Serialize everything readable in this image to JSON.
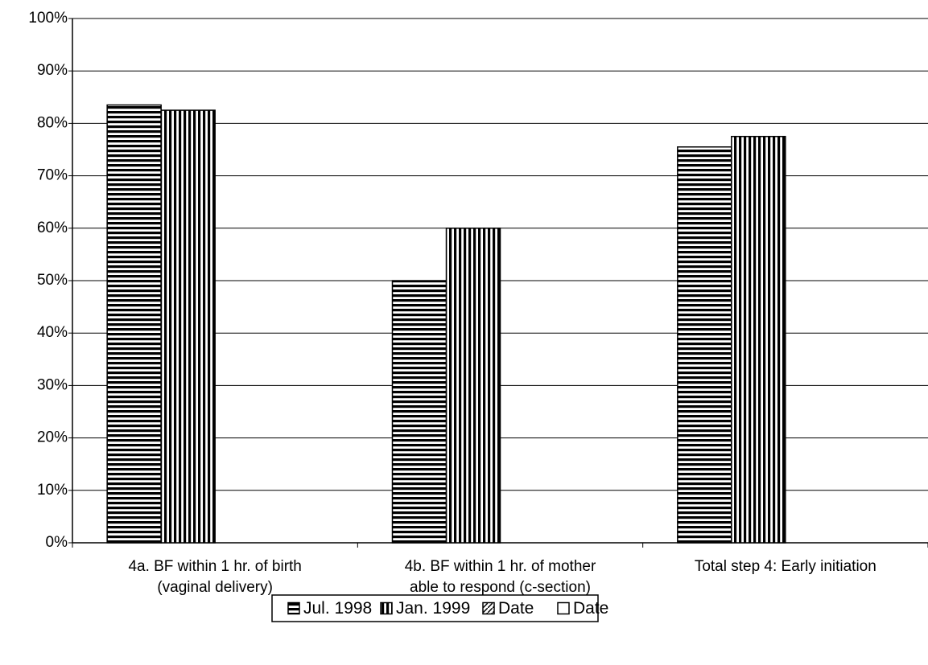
{
  "chart_data": {
    "type": "bar",
    "categories": [
      [
        "4a. BF within 1 hr. of birth",
        "(vaginal delivery)"
      ],
      [
        "4b. BF within 1 hr. of mother",
        "able to respond (c-section)"
      ],
      [
        "Total step 4: Early initiation"
      ]
    ],
    "series": [
      {
        "name": "Jul. 1998",
        "color": "#000000",
        "pattern": "horizontal",
        "values": [
          83.5,
          50,
          75.5
        ]
      },
      {
        "name": "Jan. 1999",
        "color": "#000000",
        "pattern": "vertical",
        "values": [
          82.5,
          60,
          77.5
        ]
      },
      {
        "name": "Date",
        "color": "#000000",
        "pattern": "diagonal",
        "values": [
          null,
          null,
          null
        ]
      },
      {
        "name": "Date",
        "color": "#000000",
        "pattern": "none",
        "values": [
          null,
          null,
          null
        ]
      }
    ],
    "ylim": [
      0,
      100
    ],
    "yticks": [
      {
        "value": 0,
        "label": "0%"
      },
      {
        "value": 10,
        "label": "10%"
      },
      {
        "value": 20,
        "label": "20%"
      },
      {
        "value": 30,
        "label": "30%"
      },
      {
        "value": 40,
        "label": "40%"
      },
      {
        "value": 50,
        "label": "50%"
      },
      {
        "value": 60,
        "label": "60%"
      },
      {
        "value": 70,
        "label": "70%"
      },
      {
        "value": 80,
        "label": "80%"
      },
      {
        "value": 90,
        "label": "90%"
      },
      {
        "value": 100,
        "label": "100%"
      }
    ],
    "grid": true,
    "legend": "bottom"
  }
}
